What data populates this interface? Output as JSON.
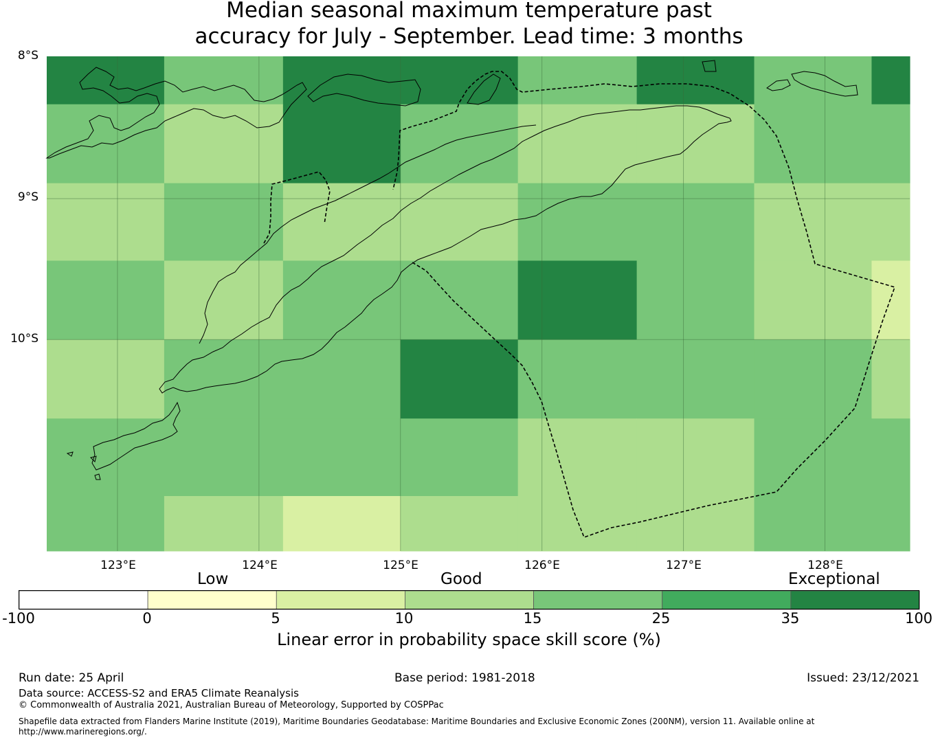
{
  "title_line1": "Median seasonal maximum temperature past",
  "title_line2": "accuracy for July - September. Lead time: 3 months",
  "map": {
    "lat_labels": [
      "8°S",
      "9°S",
      "10°S"
    ],
    "lon_labels": [
      "123°E",
      "124°E",
      "125°E",
      "126°E",
      "127°E",
      "128°E"
    ],
    "extent": {
      "lon_min": 122.5,
      "lon_max": 128.6,
      "lat_top": -7.99,
      "lat_bottom": -11.5
    },
    "grid_lon_edges": [
      122.5,
      123.33,
      124.17,
      125.0,
      125.83,
      126.67,
      127.5,
      128.33,
      128.6
    ],
    "grid_lat_edges": [
      -8.0,
      -8.33,
      -8.89,
      -9.44,
      -10.0,
      -10.56,
      -11.11,
      -11.5
    ],
    "cell_classes": [
      [
        5,
        3,
        5,
        5,
        3,
        5,
        3,
        5
      ],
      [
        3,
        2,
        5,
        3,
        2,
        2,
        3,
        3
      ],
      [
        2,
        3,
        2,
        2,
        3,
        3,
        2,
        2
      ],
      [
        3,
        2,
        3,
        3,
        5,
        3,
        2,
        1
      ],
      [
        2,
        3,
        3,
        5,
        3,
        3,
        3,
        2
      ],
      [
        3,
        3,
        3,
        3,
        2,
        2,
        3,
        3
      ],
      [
        3,
        2,
        1,
        2,
        2,
        2,
        3,
        3
      ]
    ]
  },
  "colorbar": {
    "category_labels": [
      "Low",
      "Good",
      "Exceptional"
    ],
    "ticks": [
      "-100",
      "0",
      "5",
      "10",
      "15",
      "25",
      "35",
      "100"
    ],
    "colors": [
      "#ffffff",
      "#ffffcc",
      "#d9f0a3",
      "#addd8e",
      "#78c679",
      "#41ab5d",
      "#238443"
    ],
    "title": "Linear error in probability space skill score (%)"
  },
  "footer": {
    "run_date": "Run date: 25 April",
    "base_period": "Base period: 1981-2018",
    "issued": "Issued: 23/12/2021",
    "data_source": "Data source: ACCESS-S2 and ERA5 Climate Reanalysis",
    "copyright": "© Commonwealth of Australia 2021, Australian Bureau of Meteorology, Supported by COSPPac",
    "shapefile_line1": "Shapefile data extracted from Flanders Marine Institute (2019), Maritime Boundaries Geodatabase: Maritime Boundaries and Exclusive Economic Zones (200NM), version 11. Available online at",
    "shapefile_line2": "http://www.marineregions.org/."
  }
}
